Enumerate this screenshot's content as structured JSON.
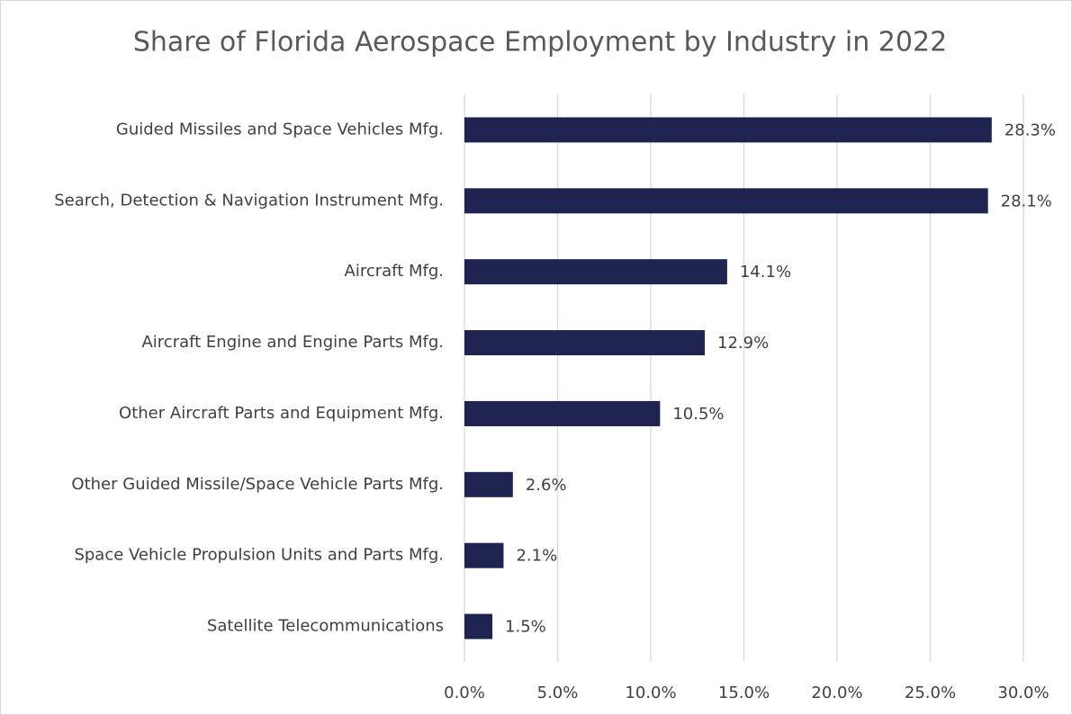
{
  "chart_data": {
    "type": "bar",
    "orientation": "horizontal",
    "title": "Share of Florida Aerospace Employment by Industry in 2022",
    "categories": [
      "Guided Missiles and Space Vehicles Mfg.",
      "Search, Detection & Navigation Instrument Mfg.",
      "Aircraft Mfg.",
      "Aircraft Engine and Engine Parts Mfg.",
      "Other Aircraft Parts and Equipment Mfg.",
      "Other Guided Missile/Space Vehicle Parts Mfg.",
      "Space Vehicle Propulsion Units and Parts Mfg.",
      "Satellite Telecommunications"
    ],
    "values": [
      28.3,
      28.1,
      14.1,
      12.9,
      10.5,
      2.6,
      2.1,
      1.5
    ],
    "value_labels": [
      "28.3%",
      "28.1%",
      "14.1%",
      "12.9%",
      "10.5%",
      "2.6%",
      "2.1%",
      "1.5%"
    ],
    "color": "#1f2350",
    "xlim": [
      0,
      30
    ],
    "xticks": [
      {
        "value": 0,
        "label": "0.0%"
      },
      {
        "value": 5,
        "label": "5.0%"
      },
      {
        "value": 10,
        "label": "10.0%"
      },
      {
        "value": 15,
        "label": "15.0%"
      },
      {
        "value": 20,
        "label": "20.0%"
      },
      {
        "value": 25,
        "label": "25.0%"
      },
      {
        "value": 30,
        "label": "30.0%"
      }
    ],
    "grid": true
  }
}
